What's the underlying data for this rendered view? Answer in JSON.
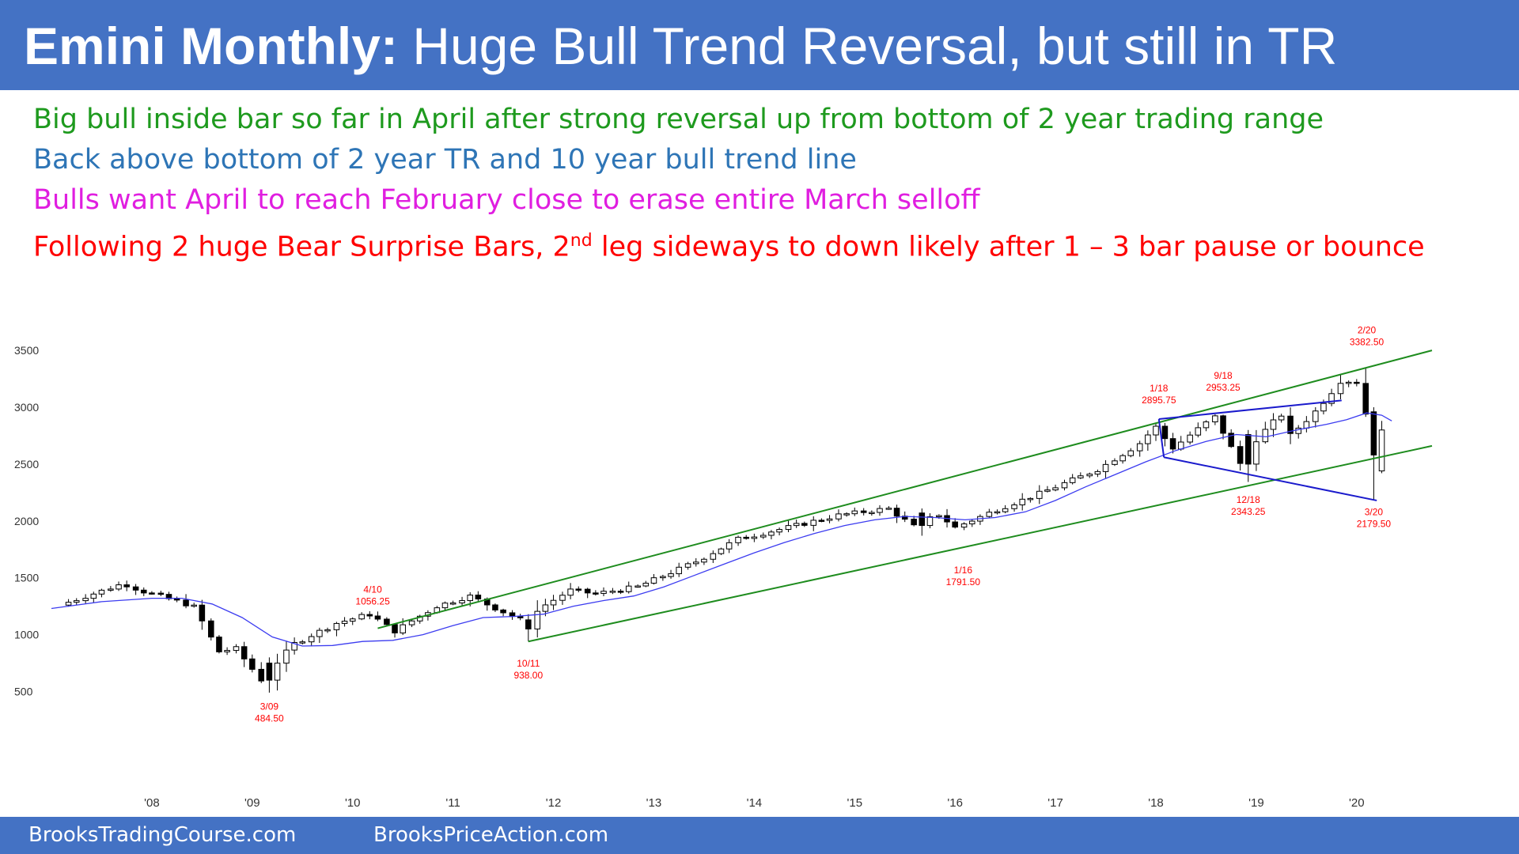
{
  "header": {
    "title_bold": "Emini Monthly:",
    "title_rest": " Huge Bull Trend Reversal, but still in TR"
  },
  "bullets": [
    {
      "text": "Big bull inside bar so far in April after strong reversal up from bottom of 2 year trading range",
      "color": "#1e9a1e"
    },
    {
      "text": "Back above bottom of 2 year TR and 10 year bull trend line",
      "color": "#2e75b6"
    },
    {
      "text": "Bulls want April to reach February close to erase entire March selloff",
      "color": "#e01ee0"
    },
    {
      "text_before": "Following 2 huge Bear Surprise Bars, 2",
      "sup": "nd",
      "text_after": " leg sideways to down likely after 1 – 3 bar pause or bounce",
      "color": "#ff0000"
    }
  ],
  "footer": {
    "left": "BrooksTradingCourse.com",
    "right": "BrooksPriceAction.com"
  },
  "chart_data": {
    "type": "candlestick",
    "ylim": [
      100,
      3800
    ],
    "y_ticks": [
      500,
      1000,
      1500,
      2000,
      2500,
      3000,
      3500
    ],
    "x_ticks": [
      {
        "label": "'08",
        "t": 2008.0
      },
      {
        "label": "'09",
        "t": 2009.0
      },
      {
        "label": "'10",
        "t": 2010.0
      },
      {
        "label": "'11",
        "t": 2011.0
      },
      {
        "label": "'12",
        "t": 2012.0
      },
      {
        "label": "'13",
        "t": 2013.0
      },
      {
        "label": "'14",
        "t": 2014.0
      },
      {
        "label": "'15",
        "t": 2015.0
      },
      {
        "label": "'16",
        "t": 2016.0
      },
      {
        "label": "'17",
        "t": 2017.0
      },
      {
        "label": "'18",
        "t": 2018.0
      },
      {
        "label": "'19",
        "t": 2019.0
      },
      {
        "label": "'20",
        "t": 2020.0
      }
    ],
    "xlim": [
      2007.0,
      2020.75
    ],
    "key_points": [
      {
        "t": 2007.17,
        "v": 1260
      },
      {
        "t": 2007.8,
        "v": 1450
      },
      {
        "t": 2008.0,
        "v": 1380
      },
      {
        "t": 2008.5,
        "v": 1250
      },
      {
        "t": 2008.75,
        "v": 850
      },
      {
        "t": 2008.92,
        "v": 880
      },
      {
        "t": 2009.17,
        "v": 600
      },
      {
        "t": 2009.5,
        "v": 920
      },
      {
        "t": 2009.92,
        "v": 1100
      },
      {
        "t": 2010.25,
        "v": 1180
      },
      {
        "t": 2010.5,
        "v": 1030
      },
      {
        "t": 2010.92,
        "v": 1250
      },
      {
        "t": 2011.25,
        "v": 1340
      },
      {
        "t": 2011.75,
        "v": 1130
      },
      {
        "t": 2012.25,
        "v": 1390
      },
      {
        "t": 2012.5,
        "v": 1360
      },
      {
        "t": 2012.92,
        "v": 1420
      },
      {
        "t": 2013.5,
        "v": 1640
      },
      {
        "t": 2013.92,
        "v": 1840
      },
      {
        "t": 2014.5,
        "v": 1960
      },
      {
        "t": 2014.92,
        "v": 2050
      },
      {
        "t": 2015.42,
        "v": 2110
      },
      {
        "t": 2015.67,
        "v": 1950
      },
      {
        "t": 2015.92,
        "v": 2060
      },
      {
        "t": 2016.08,
        "v": 1940
      },
      {
        "t": 2016.5,
        "v": 2100
      },
      {
        "t": 2016.92,
        "v": 2240
      },
      {
        "t": 2017.5,
        "v": 2450
      },
      {
        "t": 2017.92,
        "v": 2680
      },
      {
        "t": 2018.08,
        "v": 2830
      },
      {
        "t": 2018.25,
        "v": 2640
      },
      {
        "t": 2018.67,
        "v": 2920
      },
      {
        "t": 2018.92,
        "v": 2500
      },
      {
        "t": 2019.0,
        "v": 2640
      },
      {
        "t": 2019.33,
        "v": 2940
      },
      {
        "t": 2019.42,
        "v": 2750
      },
      {
        "t": 2019.67,
        "v": 2960
      },
      {
        "t": 2019.92,
        "v": 3230
      },
      {
        "t": 2020.08,
        "v": 3230
      },
      {
        "t": 2020.17,
        "v": 2960
      },
      {
        "t": 2020.25,
        "v": 2580
      },
      {
        "t": 2020.33,
        "v": 2800
      }
    ],
    "moving_average": [
      [
        2007.0,
        1230
      ],
      [
        2007.5,
        1290
      ],
      [
        2008.0,
        1320
      ],
      [
        2008.3,
        1320
      ],
      [
        2008.6,
        1270
      ],
      [
        2008.9,
        1150
      ],
      [
        2009.2,
        980
      ],
      [
        2009.5,
        900
      ],
      [
        2009.8,
        905
      ],
      [
        2010.1,
        940
      ],
      [
        2010.4,
        950
      ],
      [
        2010.7,
        1000
      ],
      [
        2011.0,
        1080
      ],
      [
        2011.3,
        1150
      ],
      [
        2011.6,
        1160
      ],
      [
        2011.9,
        1180
      ],
      [
        2012.2,
        1250
      ],
      [
        2012.5,
        1300
      ],
      [
        2012.8,
        1340
      ],
      [
        2013.1,
        1420
      ],
      [
        2013.4,
        1520
      ],
      [
        2013.7,
        1620
      ],
      [
        2014.0,
        1720
      ],
      [
        2014.3,
        1810
      ],
      [
        2014.6,
        1890
      ],
      [
        2014.9,
        1960
      ],
      [
        2015.2,
        2010
      ],
      [
        2015.5,
        2040
      ],
      [
        2015.8,
        2030
      ],
      [
        2016.1,
        2010
      ],
      [
        2016.4,
        2030
      ],
      [
        2016.7,
        2080
      ],
      [
        2017.0,
        2180
      ],
      [
        2017.3,
        2300
      ],
      [
        2017.6,
        2410
      ],
      [
        2017.9,
        2520
      ],
      [
        2018.2,
        2620
      ],
      [
        2018.5,
        2700
      ],
      [
        2018.8,
        2760
      ],
      [
        2019.1,
        2740
      ],
      [
        2019.4,
        2800
      ],
      [
        2019.7,
        2850
      ],
      [
        2019.9,
        2890
      ],
      [
        2020.1,
        2950
      ],
      [
        2020.25,
        2930
      ],
      [
        2020.35,
        2880
      ]
    ],
    "trend_lines": [
      {
        "color": "#1e8c1e",
        "points": [
          [
            2010.25,
            1056
          ],
          [
            2020.75,
            3500
          ]
        ]
      },
      {
        "color": "#1e8c1e",
        "points": [
          [
            2011.75,
            940
          ],
          [
            2020.75,
            2660
          ]
        ]
      },
      {
        "color": "#1a1acc",
        "points": [
          [
            2018.03,
            2896
          ],
          [
            2019.85,
            3060
          ]
        ]
      },
      {
        "color": "#1a1acc",
        "points": [
          [
            2018.03,
            2896
          ],
          [
            2018.08,
            2560
          ]
        ]
      },
      {
        "color": "#1a1acc",
        "points": [
          [
            2018.08,
            2560
          ],
          [
            2020.2,
            2180
          ]
        ]
      }
    ],
    "annotations": [
      {
        "date": "4/10",
        "value": "1056.25",
        "t": 2010.2,
        "v": 1370,
        "color": "#ff0000"
      },
      {
        "date": "3/09",
        "value": "484.50",
        "t": 2009.17,
        "v": 340,
        "color": "#ff0000"
      },
      {
        "date": "10/11",
        "value": "938.00",
        "t": 2011.75,
        "v": 720,
        "color": "#ff0000"
      },
      {
        "date": "1/16",
        "value": "1791.50",
        "t": 2016.08,
        "v": 1540,
        "color": "#ff0000"
      },
      {
        "date": "1/18",
        "value": "2895.75",
        "t": 2018.03,
        "v": 3140,
        "color": "#ff0000"
      },
      {
        "date": "9/18",
        "value": "2953.25",
        "t": 2018.67,
        "v": 3250,
        "color": "#ff0000"
      },
      {
        "date": "12/18",
        "value": "2343.25",
        "t": 2018.92,
        "v": 2160,
        "color": "#ff0000"
      },
      {
        "date": "2/20",
        "value": "3382.50",
        "t": 2020.1,
        "v": 3650,
        "color": "#ff0000"
      },
      {
        "date": "3/20",
        "value": "2179.50",
        "t": 2020.17,
        "v": 2050,
        "color": "#ff0000"
      }
    ]
  }
}
